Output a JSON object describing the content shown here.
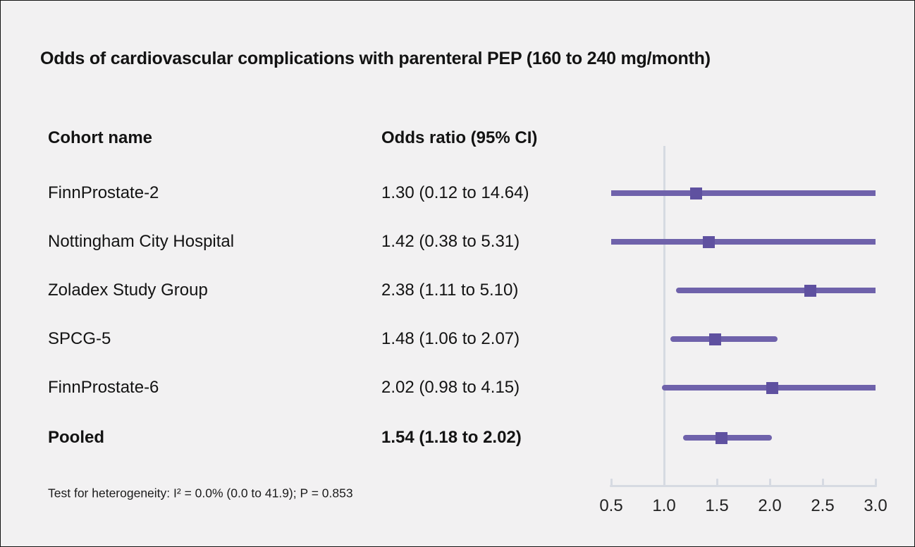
{
  "title": "Odds of cardiovascular complications with parenteral PEP (160 to 240 mg/month)",
  "table": {
    "cohort_header": "Cohort name",
    "or_header": "Odds ratio (95% CI)",
    "rows": [
      {
        "name": "FinnProstate-2",
        "or_text": "1.30 (0.12 to 14.64)"
      },
      {
        "name": "Nottingham City Hospital",
        "or_text": "1.42 (0.38 to 5.31)"
      },
      {
        "name": "Zoladex Study Group",
        "or_text": "2.38 (1.11 to 5.10)"
      },
      {
        "name": "SPCG-5",
        "or_text": "1.48 (1.06 to 2.07)"
      },
      {
        "name": "FinnProstate-6",
        "or_text": "2.02 (0.98 to 4.15)"
      },
      {
        "name": "Pooled",
        "or_text": "1.54 (1.18 to 2.02)"
      }
    ]
  },
  "footnote": "Test for heterogeneity: I² = 0.0% (0.0 to 41.9); P = 0.853",
  "colors": {
    "background": "#f2f1f2",
    "ci_line": "#6f62ab",
    "marker": "#5f51a0",
    "reference_line": "#d6dae2",
    "axis": "#d6dae2",
    "text": "#131313"
  },
  "chart_data": {
    "type": "forest",
    "title": "Odds of cardiovascular complications with parenteral PEP (160 to 240 mg/month)",
    "xlim": [
      0.5,
      3.0
    ],
    "x_ticks": [
      0.5,
      1.0,
      1.5,
      2.0,
      2.5,
      3.0
    ],
    "x_tick_labels": [
      "0.5",
      "1.0",
      "1.5",
      "2.0",
      "2.5",
      "3.0"
    ],
    "reference_line": 1.0,
    "legend_position": "none",
    "grid": false,
    "studies": [
      {
        "name": "FinnProstate-2",
        "or": 1.3,
        "ci_low": 0.12,
        "ci_high": 14.64,
        "pooled": false
      },
      {
        "name": "Nottingham City Hospital",
        "or": 1.42,
        "ci_low": 0.38,
        "ci_high": 5.31,
        "pooled": false
      },
      {
        "name": "Zoladex Study Group",
        "or": 2.38,
        "ci_low": 1.11,
        "ci_high": 5.1,
        "pooled": false
      },
      {
        "name": "SPCG-5",
        "or": 1.48,
        "ci_low": 1.06,
        "ci_high": 2.07,
        "pooled": false
      },
      {
        "name": "FinnProstate-6",
        "or": 2.02,
        "ci_low": 0.98,
        "ci_high": 4.15,
        "pooled": false
      },
      {
        "name": "Pooled",
        "or": 1.54,
        "ci_low": 1.18,
        "ci_high": 2.02,
        "pooled": true
      }
    ],
    "heterogeneity_note": "Test for heterogeneity: I² = 0.0% (0.0 to 41.9); P = 0.853"
  }
}
